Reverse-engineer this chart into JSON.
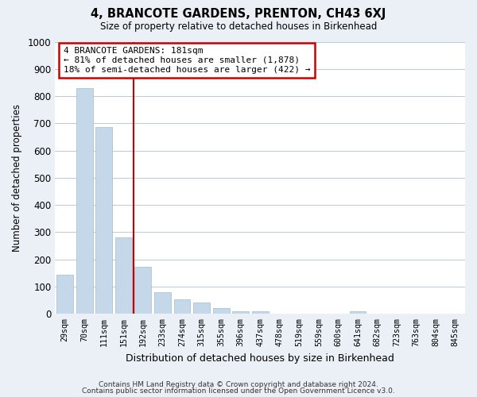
{
  "title": "4, BRANCOTE GARDENS, PRENTON, CH43 6XJ",
  "subtitle": "Size of property relative to detached houses in Birkenhead",
  "xlabel": "Distribution of detached houses by size in Birkenhead",
  "ylabel": "Number of detached properties",
  "bar_labels": [
    "29sqm",
    "70sqm",
    "111sqm",
    "151sqm",
    "192sqm",
    "233sqm",
    "274sqm",
    "315sqm",
    "355sqm",
    "396sqm",
    "437sqm",
    "478sqm",
    "519sqm",
    "559sqm",
    "600sqm",
    "641sqm",
    "682sqm",
    "723sqm",
    "763sqm",
    "804sqm",
    "845sqm"
  ],
  "bar_values": [
    145,
    828,
    685,
    280,
    172,
    80,
    52,
    43,
    20,
    10,
    10,
    0,
    0,
    0,
    0,
    10,
    0,
    0,
    0,
    0,
    0
  ],
  "bar_color": "#c5d8ea",
  "bar_edge_color": "#a0bcd0",
  "vline_color": "#cc0000",
  "vline_x_index": 3.5,
  "annotation_title": "4 BRANCOTE GARDENS: 181sqm",
  "annotation_line1": "← 81% of detached houses are smaller (1,878)",
  "annotation_line2": "18% of semi-detached houses are larger (422) →",
  "annotation_box_color": "#ffffff",
  "annotation_box_edge": "#cc0000",
  "ylim": [
    0,
    1000
  ],
  "yticks": [
    0,
    100,
    200,
    300,
    400,
    500,
    600,
    700,
    800,
    900,
    1000
  ],
  "footer1": "Contains HM Land Registry data © Crown copyright and database right 2024.",
  "footer2": "Contains public sector information licensed under the Open Government Licence v3.0.",
  "bg_color": "#eaf0f6",
  "plot_bg_color": "#ffffff",
  "grid_color": "#b8ccd8"
}
